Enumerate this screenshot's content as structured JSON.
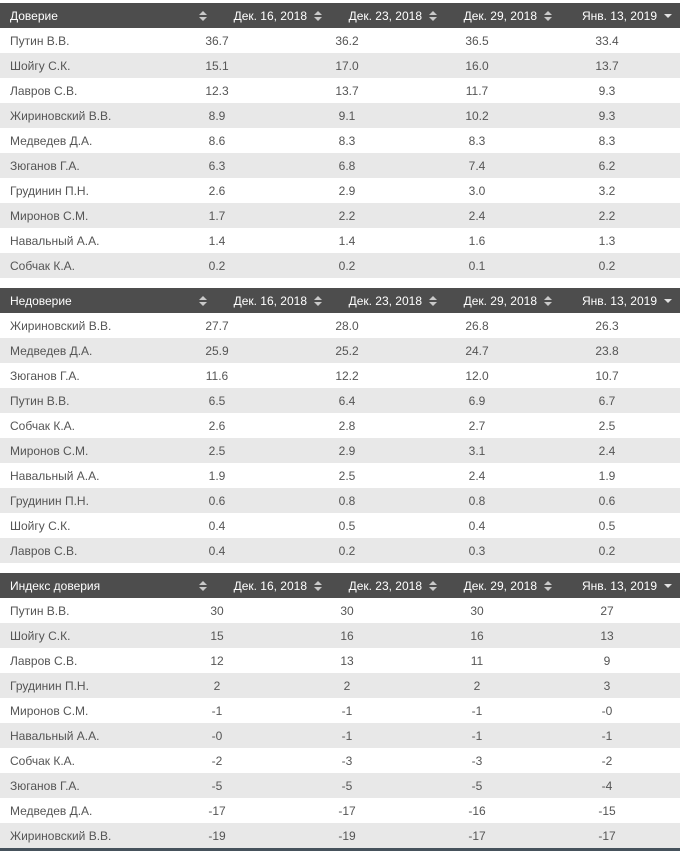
{
  "colors": {
    "header_bg": "#4d4d4d",
    "header_text": "#ffffff",
    "row_alt_bg": "#e8e8e8",
    "row_text": "#555555",
    "sort_icon": "#c9c9c9"
  },
  "columns": [
    {
      "label": "Дек. 16, 2018",
      "sort": "both"
    },
    {
      "label": "Дек. 23, 2018",
      "sort": "both"
    },
    {
      "label": "Дек. 29, 2018",
      "sort": "both"
    },
    {
      "label": "Янв. 13, 2019",
      "sort": "desc"
    }
  ],
  "tables": [
    {
      "title": "Доверие",
      "rows": [
        {
          "name": "Путин В.В.",
          "values": [
            "36.7",
            "36.2",
            "36.5",
            "33.4"
          ]
        },
        {
          "name": "Шойгу С.К.",
          "values": [
            "15.1",
            "17.0",
            "16.0",
            "13.7"
          ]
        },
        {
          "name": "Лавров С.В.",
          "values": [
            "12.3",
            "13.7",
            "11.7",
            "9.3"
          ]
        },
        {
          "name": "Жириновский В.В.",
          "values": [
            "8.9",
            "9.1",
            "10.2",
            "9.3"
          ]
        },
        {
          "name": "Медведев Д.А.",
          "values": [
            "8.6",
            "8.3",
            "8.3",
            "8.3"
          ]
        },
        {
          "name": "Зюганов Г.А.",
          "values": [
            "6.3",
            "6.8",
            "7.4",
            "6.2"
          ]
        },
        {
          "name": "Грудинин П.Н.",
          "values": [
            "2.6",
            "2.9",
            "3.0",
            "3.2"
          ]
        },
        {
          "name": "Миронов С.М.",
          "values": [
            "1.7",
            "2.2",
            "2.4",
            "2.2"
          ]
        },
        {
          "name": "Навальный А.А.",
          "values": [
            "1.4",
            "1.4",
            "1.6",
            "1.3"
          ]
        },
        {
          "name": "Собчак К.А.",
          "values": [
            "0.2",
            "0.2",
            "0.1",
            "0.2"
          ]
        }
      ]
    },
    {
      "title": "Недоверие",
      "rows": [
        {
          "name": "Жириновский В.В.",
          "values": [
            "27.7",
            "28.0",
            "26.8",
            "26.3"
          ]
        },
        {
          "name": "Медведев Д.А.",
          "values": [
            "25.9",
            "25.2",
            "24.7",
            "23.8"
          ]
        },
        {
          "name": "Зюганов Г.А.",
          "values": [
            "11.6",
            "12.2",
            "12.0",
            "10.7"
          ]
        },
        {
          "name": "Путин В.В.",
          "values": [
            "6.5",
            "6.4",
            "6.9",
            "6.7"
          ]
        },
        {
          "name": "Собчак К.А.",
          "values": [
            "2.6",
            "2.8",
            "2.7",
            "2.5"
          ]
        },
        {
          "name": "Миронов С.М.",
          "values": [
            "2.5",
            "2.9",
            "3.1",
            "2.4"
          ]
        },
        {
          "name": "Навальный А.А.",
          "values": [
            "1.9",
            "2.5",
            "2.4",
            "1.9"
          ]
        },
        {
          "name": "Грудинин П.Н.",
          "values": [
            "0.6",
            "0.8",
            "0.8",
            "0.6"
          ]
        },
        {
          "name": "Шойгу С.К.",
          "values": [
            "0.4",
            "0.5",
            "0.4",
            "0.5"
          ]
        },
        {
          "name": "Лавров С.В.",
          "values": [
            "0.4",
            "0.2",
            "0.3",
            "0.2"
          ]
        }
      ]
    },
    {
      "title": "Индекс доверия",
      "rows": [
        {
          "name": "Путин В.В.",
          "values": [
            "30",
            "30",
            "30",
            "27"
          ]
        },
        {
          "name": "Шойгу С.К.",
          "values": [
            "15",
            "16",
            "16",
            "13"
          ]
        },
        {
          "name": "Лавров С.В.",
          "values": [
            "12",
            "13",
            "11",
            "9"
          ]
        },
        {
          "name": "Грудинин П.Н.",
          "values": [
            "2",
            "2",
            "2",
            "3"
          ]
        },
        {
          "name": "Миронов С.М.",
          "values": [
            "-1",
            "-1",
            "-1",
            "-0"
          ]
        },
        {
          "name": "Навальный А.А.",
          "values": [
            "-0",
            "-1",
            "-1",
            "-1"
          ]
        },
        {
          "name": "Собчак К.А.",
          "values": [
            "-2",
            "-3",
            "-3",
            "-2"
          ]
        },
        {
          "name": "Зюганов Г.А.",
          "values": [
            "-5",
            "-5",
            "-5",
            "-4"
          ]
        },
        {
          "name": "Медведев Д.А.",
          "values": [
            "-17",
            "-17",
            "-16",
            "-15"
          ]
        },
        {
          "name": "Жириновский В.В.",
          "values": [
            "-19",
            "-19",
            "-17",
            "-17"
          ]
        }
      ]
    }
  ]
}
